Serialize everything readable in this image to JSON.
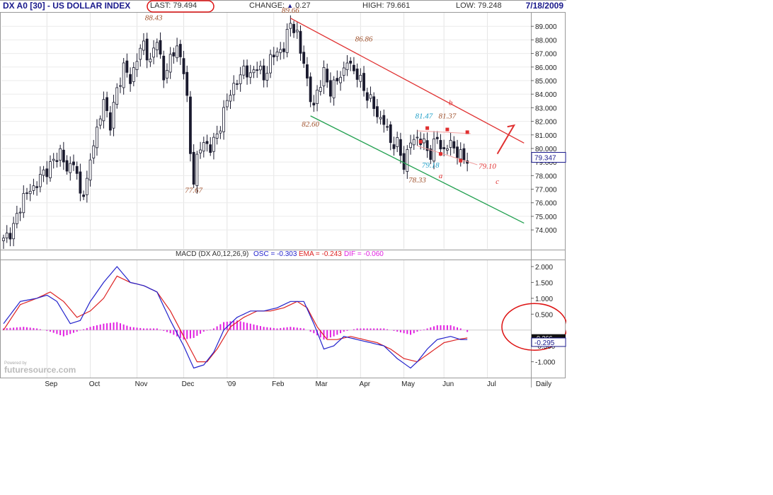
{
  "header": {
    "symbol_title": "DX A0 [30] - US DOLLAR INDEX",
    "last_label": "LAST:",
    "last_value": "79.494",
    "change_label": "CHANGE:",
    "change_value": "0.27",
    "high_label": "HIGH:",
    "high_value": "79.661",
    "low_label": "LOW:",
    "low_value": "79.248",
    "date": "7/18/2009"
  },
  "macd_header": {
    "title": "MACD (DX A0,12,26,9)",
    "osc": "OSC = -0.303",
    "ema": "EMA = -0.243",
    "dif": "DIF = -0.060"
  },
  "branding": {
    "powered_by": "Powered by",
    "logo": "futuresource.com"
  },
  "colors": {
    "price_bars": "#1a1a2e",
    "resistance": "#e03030",
    "support": "#22a050",
    "annotation": "#a0522d",
    "annotation_alt": "#22a0c8",
    "macd_line": "#2222cc",
    "ema_line": "#dd2222",
    "histogram": "#e020e0",
    "circle": "#dd1111"
  },
  "chart_data": [
    {
      "type": "candlestick",
      "name": "DX A0 [30] - US DOLLAR INDEX",
      "frequency": "Daily",
      "x_ticks": [
        "Sep",
        "Oct",
        "Nov",
        "Dec",
        "'09",
        "Feb",
        "Mar",
        "Apr",
        "May",
        "Jun",
        "Jul",
        "Daily"
      ],
      "y_ticks": [
        "74.000",
        "75.000",
        "76.000",
        "77.000",
        "78.000",
        "79.000",
        "80.000",
        "81.000",
        "82.000",
        "83.000",
        "84.000",
        "85.000",
        "86.000",
        "87.000",
        "88.000",
        "89.000"
      ],
      "ylim": [
        72.6,
        90.0
      ],
      "last_marker": "79.347",
      "close_path": [
        [
          0,
          73.2
        ],
        [
          3,
          74.2
        ],
        [
          6,
          76.5
        ],
        [
          9,
          77.1
        ],
        [
          12,
          78.2
        ],
        [
          15,
          79.0
        ],
        [
          17,
          79.8
        ],
        [
          19,
          78.3
        ],
        [
          21,
          79.2
        ],
        [
          23,
          76.5
        ],
        [
          25,
          77.5
        ],
        [
          27,
          80.5
        ],
        [
          29,
          82.3
        ],
        [
          30,
          83.5
        ],
        [
          32,
          81.8
        ],
        [
          34,
          84.3
        ],
        [
          36,
          86.0
        ],
        [
          38,
          85.0
        ],
        [
          40,
          86.6
        ],
        [
          42,
          87.8
        ],
        [
          44,
          86.2
        ],
        [
          46,
          88.3
        ],
        [
          48,
          85.0
        ],
        [
          50,
          86.8
        ],
        [
          52,
          87.3
        ],
        [
          54,
          86.0
        ],
        [
          55,
          83.5
        ],
        [
          56,
          79.5
        ],
        [
          57,
          77.8
        ],
        [
          58,
          79.3
        ],
        [
          60,
          80.5
        ],
        [
          62,
          80.0
        ],
        [
          64,
          81.0
        ],
        [
          66,
          82.6
        ],
        [
          68,
          84.3
        ],
        [
          70,
          84.8
        ],
        [
          72,
          86.0
        ],
        [
          74,
          85.2
        ],
        [
          76,
          86.3
        ],
        [
          78,
          85.0
        ],
        [
          80,
          86.7
        ],
        [
          82,
          87.0
        ],
        [
          84,
          87.5
        ],
        [
          86,
          89.2
        ],
        [
          87,
          89.0
        ],
        [
          88,
          88.3
        ],
        [
          89,
          87.0
        ],
        [
          90,
          86.5
        ],
        [
          91,
          85.0
        ],
        [
          92,
          83.6
        ],
        [
          93,
          83.0
        ],
        [
          94,
          84.3
        ],
        [
          96,
          85.5
        ],
        [
          98,
          84.3
        ],
        [
          100,
          85.0
        ],
        [
          102,
          85.8
        ],
        [
          103,
          86.5
        ],
        [
          104,
          86.0
        ],
        [
          106,
          85.5
        ],
        [
          108,
          84.3
        ],
        [
          110,
          83.6
        ],
        [
          112,
          82.4
        ],
        [
          114,
          82.0
        ],
        [
          116,
          80.5
        ],
        [
          118,
          80.3
        ],
        [
          120,
          78.8
        ],
        [
          121,
          79.6
        ],
        [
          122,
          80.5
        ],
        [
          124,
          80.8
        ],
        [
          126,
          80.3
        ],
        [
          128,
          79.6
        ],
        [
          130,
          80.8
        ],
        [
          132,
          79.7
        ],
        [
          134,
          80.5
        ],
        [
          136,
          79.6
        ],
        [
          138,
          79.3
        ]
      ],
      "candle_count": 140,
      "annotations": [
        {
          "text": "88.43",
          "x": 45,
          "y": 89.45
        },
        {
          "text": "77.67",
          "x": 57,
          "y": 76.75
        },
        {
          "text": "89.66",
          "x": 86,
          "y": 90.0
        },
        {
          "text": "86.86",
          "x": 108,
          "y": 87.9
        },
        {
          "text": "82.60",
          "x": 92,
          "y": 81.6
        },
        {
          "text": "78.33",
          "x": 124,
          "y": 77.5
        },
        {
          "text": "81.47",
          "x": 126,
          "y": 82.2
        },
        {
          "text": "81.37",
          "x": 133,
          "y": 82.2
        },
        {
          "text": "79.18",
          "x": 128,
          "y": 78.6
        },
        {
          "text": "79.10",
          "x": 145,
          "y": 78.5
        },
        {
          "text": "a",
          "x": 131,
          "y": 77.8
        },
        {
          "text": "b",
          "x": 134,
          "y": 83.2
        },
        {
          "text": "c",
          "x": 148,
          "y": 77.4
        }
      ],
      "trendlines": [
        {
          "name": "resistance",
          "from": [
            86,
            89.6
          ],
          "to": [
            156,
            80.4
          ]
        },
        {
          "name": "support",
          "from": [
            92,
            82.4
          ],
          "to": [
            156,
            74.5
          ]
        }
      ]
    },
    {
      "type": "line",
      "name": "MACD",
      "y_ticks": [
        "-1.000",
        "-0.500",
        "0.500",
        "1.000",
        "1.500",
        "2.000"
      ],
      "ylim": [
        -1.5,
        2.2
      ],
      "markers": [
        "-0.266",
        "-0.295"
      ],
      "series": [
        {
          "name": "MACD",
          "values": [
            [
              0,
              0.2
            ],
            [
              5,
              0.9
            ],
            [
              10,
              1.0
            ],
            [
              13,
              1.1
            ],
            [
              16,
              0.9
            ],
            [
              20,
              0.2
            ],
            [
              23,
              0.3
            ],
            [
              26,
              0.9
            ],
            [
              30,
              1.5
            ],
            [
              34,
              2.0
            ],
            [
              38,
              1.5
            ],
            [
              42,
              1.4
            ],
            [
              46,
              1.2
            ],
            [
              50,
              0.3
            ],
            [
              54,
              -0.5
            ],
            [
              57,
              -1.2
            ],
            [
              60,
              -1.1
            ],
            [
              63,
              -0.7
            ],
            [
              66,
              0.0
            ],
            [
              70,
              0.4
            ],
            [
              74,
              0.6
            ],
            [
              78,
              0.6
            ],
            [
              82,
              0.7
            ],
            [
              86,
              0.9
            ],
            [
              90,
              0.9
            ],
            [
              93,
              0.2
            ],
            [
              96,
              -0.6
            ],
            [
              99,
              -0.5
            ],
            [
              102,
              -0.2
            ],
            [
              106,
              -0.3
            ],
            [
              110,
              -0.4
            ],
            [
              114,
              -0.5
            ],
            [
              118,
              -0.9
            ],
            [
              122,
              -1.2
            ],
            [
              124,
              -1.0
            ],
            [
              127,
              -0.6
            ],
            [
              130,
              -0.3
            ],
            [
              134,
              -0.2
            ],
            [
              137,
              -0.3
            ],
            [
              139,
              -0.3
            ]
          ]
        },
        {
          "name": "EMA",
          "values": [
            [
              0,
              0.0
            ],
            [
              5,
              0.8
            ],
            [
              10,
              1.0
            ],
            [
              14,
              1.2
            ],
            [
              18,
              0.9
            ],
            [
              22,
              0.4
            ],
            [
              26,
              0.6
            ],
            [
              30,
              1.0
            ],
            [
              34,
              1.7
            ],
            [
              38,
              1.5
            ],
            [
              42,
              1.4
            ],
            [
              46,
              1.2
            ],
            [
              50,
              0.6
            ],
            [
              54,
              -0.2
            ],
            [
              58,
              -1.0
            ],
            [
              61,
              -1.0
            ],
            [
              64,
              -0.6
            ],
            [
              68,
              0.1
            ],
            [
              72,
              0.4
            ],
            [
              76,
              0.6
            ],
            [
              80,
              0.6
            ],
            [
              84,
              0.7
            ],
            [
              88,
              0.9
            ],
            [
              91,
              0.7
            ],
            [
              94,
              0.1
            ],
            [
              97,
              -0.3
            ],
            [
              100,
              -0.3
            ],
            [
              104,
              -0.2
            ],
            [
              108,
              -0.3
            ],
            [
              112,
              -0.4
            ],
            [
              116,
              -0.6
            ],
            [
              120,
              -0.9
            ],
            [
              124,
              -1.0
            ],
            [
              128,
              -0.7
            ],
            [
              132,
              -0.4
            ],
            [
              136,
              -0.3
            ],
            [
              139,
              -0.25
            ]
          ]
        },
        {
          "name": "DIF",
          "values": [
            [
              0,
              0.05
            ],
            [
              6,
              0.1
            ],
            [
              10,
              0.05
            ],
            [
              14,
              -0.05
            ],
            [
              18,
              -0.2
            ],
            [
              22,
              -0.05
            ],
            [
              26,
              0.1
            ],
            [
              30,
              0.2
            ],
            [
              34,
              0.25
            ],
            [
              38,
              0.1
            ],
            [
              42,
              0.05
            ],
            [
              46,
              0.05
            ],
            [
              50,
              -0.1
            ],
            [
              54,
              -0.3
            ],
            [
              57,
              -0.25
            ],
            [
              60,
              -0.05
            ],
            [
              63,
              0.05
            ],
            [
              66,
              0.25
            ],
            [
              70,
              0.3
            ],
            [
              74,
              0.2
            ],
            [
              78,
              0.1
            ],
            [
              82,
              0.05
            ],
            [
              86,
              0.1
            ],
            [
              90,
              0.05
            ],
            [
              93,
              -0.1
            ],
            [
              96,
              -0.3
            ],
            [
              99,
              -0.2
            ],
            [
              102,
              -0.05
            ],
            [
              106,
              0.05
            ],
            [
              110,
              0.05
            ],
            [
              114,
              0.05
            ],
            [
              118,
              -0.05
            ],
            [
              122,
              -0.15
            ],
            [
              124,
              -0.05
            ],
            [
              127,
              0.05
            ],
            [
              130,
              0.15
            ],
            [
              134,
              0.15
            ],
            [
              137,
              0.05
            ],
            [
              139,
              -0.06
            ]
          ]
        }
      ]
    }
  ]
}
